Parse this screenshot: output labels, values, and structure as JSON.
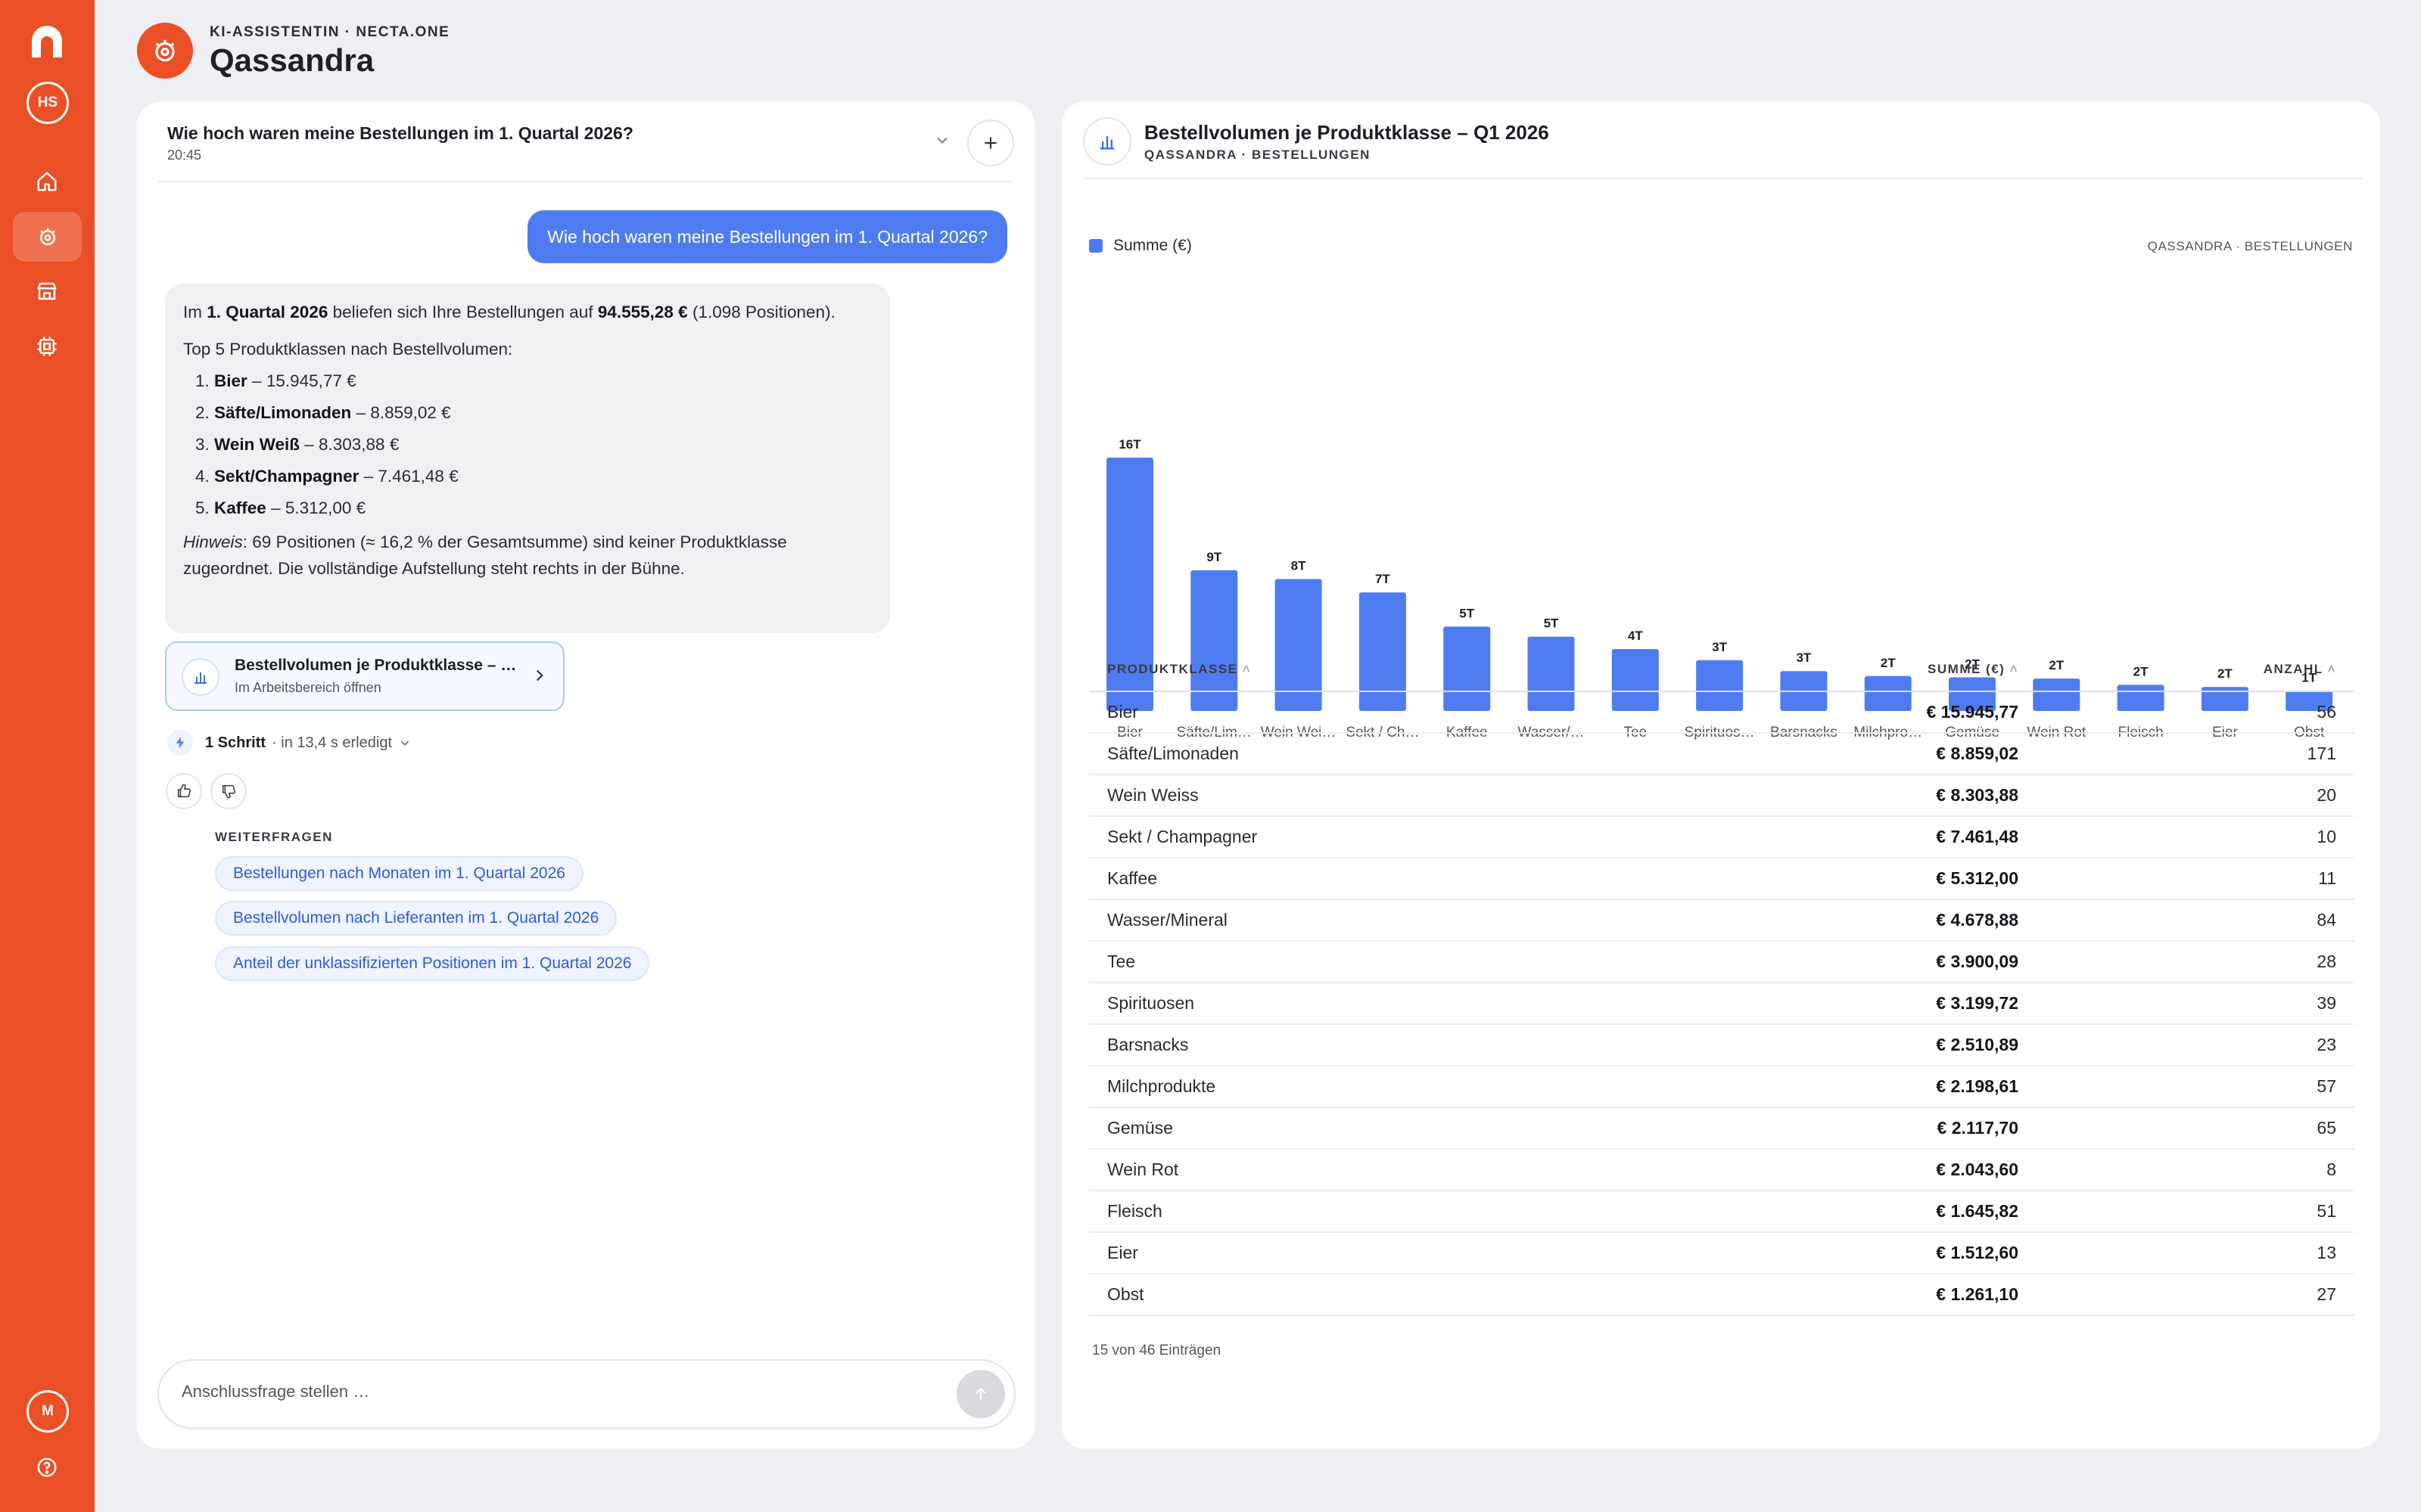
{
  "sidebar": {
    "user_initials": "HS",
    "bottom_initial": "M"
  },
  "header": {
    "subtitle": "KI-ASSISTENTIN · NECTA.ONE",
    "title": "Qassandra"
  },
  "chat": {
    "question_title": "Wie hoch waren meine Bestellungen im 1. Quartal 2026?",
    "time": "20:45",
    "user_message": "Wie hoch waren meine Bestellungen im 1. Quartal 2026?",
    "answer": {
      "intro_pre": "Im ",
      "intro_period": "1. Quartal 2026",
      "intro_mid": " beliefen sich Ihre Bestellungen auf ",
      "intro_total": "94.555,28 €",
      "intro_post": " (1.098 Positionen).",
      "top_heading": "Top 5 Produktklassen nach Bestellvolumen:",
      "top": [
        {
          "num": "1.",
          "name": "Bier",
          "value": " – 15.945,77 €"
        },
        {
          "num": "2.",
          "name": "Säfte/Limonaden",
          "value": " – 8.859,02 €"
        },
        {
          "num": "3.",
          "name": "Wein Weiß",
          "value": " – 8.303,88 €"
        },
        {
          "num": "4.",
          "name": "Sekt/Champagner",
          "value": " – 7.461,48 €"
        },
        {
          "num": "5.",
          "name": "Kaffee",
          "value": " – 5.312,00 €"
        }
      ],
      "hint_label": "Hinweis",
      "hint_text": ": 69 Positionen (≈ 16,2 % der Gesamtsumme) sind keiner Produktklasse zugeordnet. Die vollständige Aufstellung steht rechts in der Bühne."
    },
    "artifact": {
      "title": "Bestellvolumen je Produktklasse – Q1 2026",
      "subtitle": "Im Arbeitsbereich öffnen"
    },
    "steps": {
      "count": "1 Schritt",
      "detail": "· in 13,4 s erledigt"
    },
    "followups_label": "WEITERFRAGEN",
    "followups": [
      "Bestellungen nach Monaten im 1. Quartal 2026",
      "Bestellvolumen nach Lieferanten im 1. Quartal 2026",
      "Anteil der unklassifizierten Positionen im 1. Quartal 2026"
    ],
    "composer_placeholder": "Anschlussfrage stellen …"
  },
  "stage": {
    "title": "Bestellvolumen je Produktklasse – Q1 2026",
    "subtitle": "QASSANDRA · BESTELLUNGEN",
    "source": "QASSANDRA · BESTELLUNGEN",
    "table": {
      "headers": [
        "PRODUKTKLASSE",
        "SUMME (€)",
        "ANZAHL"
      ],
      "rows": [
        {
          "name": "Bier",
          "sum": "€ 15.945,77",
          "count": "56"
        },
        {
          "name": "Säfte/Limonaden",
          "sum": "€ 8.859,02",
          "count": "171"
        },
        {
          "name": "Wein Weiss",
          "sum": "€ 8.303,88",
          "count": "20"
        },
        {
          "name": "Sekt / Champagner",
          "sum": "€ 7.461,48",
          "count": "10"
        },
        {
          "name": "Kaffee",
          "sum": "€ 5.312,00",
          "count": "11"
        },
        {
          "name": "Wasser/Mineral",
          "sum": "€ 4.678,88",
          "count": "84"
        },
        {
          "name": "Tee",
          "sum": "€ 3.900,09",
          "count": "28"
        },
        {
          "name": "Spirituosen",
          "sum": "€ 3.199,72",
          "count": "39"
        },
        {
          "name": "Barsnacks",
          "sum": "€ 2.510,89",
          "count": "23"
        },
        {
          "name": "Milchprodukte",
          "sum": "€ 2.198,61",
          "count": "57"
        },
        {
          "name": "Gemüse",
          "sum": "€ 2.117,70",
          "count": "65"
        },
        {
          "name": "Wein Rot",
          "sum": "€ 2.043,60",
          "count": "8"
        },
        {
          "name": "Fleisch",
          "sum": "€ 1.645,82",
          "count": "51"
        },
        {
          "name": "Eier",
          "sum": "€ 1.512,60",
          "count": "13"
        },
        {
          "name": "Obst",
          "sum": "€ 1.261,10",
          "count": "27"
        }
      ],
      "footer": "15 von 46 Einträgen"
    }
  },
  "chart_data": {
    "type": "bar",
    "title": "Bestellvolumen je Produktklasse – Q1 2026",
    "legend_position": "top-left",
    "grid": false,
    "categories": [
      "Bier",
      "Säfte/Lim…",
      "Wein Wei…",
      "Sekt / Ch…",
      "Kaffee",
      "Wasser/…",
      "Tee",
      "Spirituos…",
      "Barsnacks",
      "Milchpro…",
      "Gemüse",
      "Wein Rot",
      "Fleisch",
      "Eier",
      "Obst"
    ],
    "data_labels": [
      "16T",
      "9T",
      "8T",
      "7T",
      "5T",
      "5T",
      "4T",
      "3T",
      "3T",
      "2T",
      "2T",
      "2T",
      "2T",
      "2T",
      "1T"
    ],
    "series": [
      {
        "name": "Summe (€)",
        "color": "#4e7cf0",
        "values": [
          15945.77,
          8859.02,
          8303.88,
          7461.48,
          5312.0,
          4678.88,
          3900.09,
          3199.72,
          2510.89,
          2198.61,
          2117.7,
          2043.6,
          1645.82,
          1512.6,
          1261.1
        ]
      }
    ],
    "ylim": [
      0,
      15945.77
    ]
  },
  "colors": {
    "brand": "#eb4f25",
    "accent": "#4e7cf0"
  }
}
